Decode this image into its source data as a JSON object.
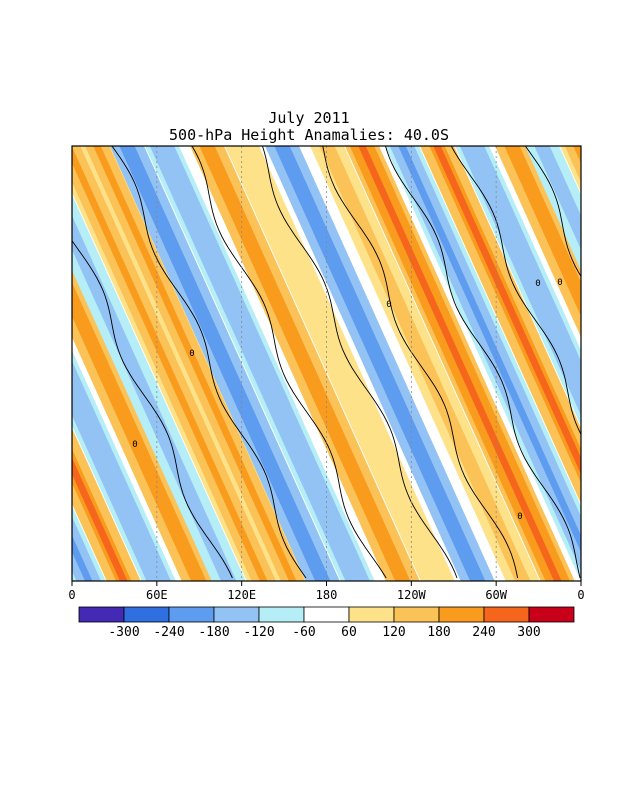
{
  "chart_data": {
    "type": "heatmap",
    "title": "July 2011",
    "subtitle": "500-hPa Height Anamalies: 40.0S",
    "x_ticks": [
      "0",
      "60E",
      "120E",
      "180",
      "120W",
      "60W",
      "0"
    ],
    "contour_label": "0",
    "colorbar": {
      "labels": [
        "-300",
        "-240",
        "-180",
        "-120",
        "-60",
        "60",
        "120",
        "180",
        "240",
        "300"
      ],
      "colors": [
        "#4329b4",
        "#2f6fe0",
        "#5e9cf0",
        "#93c2f5",
        "#b5eef6",
        "#ffffff",
        "#fde28a",
        "#fbc257",
        "#f99b1c",
        "#f5651c",
        "#c8001a"
      ]
    },
    "bands": [
      {
        "x0": 25,
        "v": 150
      },
      {
        "x0": 55,
        "v": -200
      },
      {
        "x0": 90,
        "v": -150
      },
      {
        "x0": 135,
        "v": 200
      },
      {
        "x0": 170,
        "v": 60
      },
      {
        "x0": 210,
        "v": -190
      },
      {
        "x0": 255,
        "v": 120
      },
      {
        "x0": 290,
        "v": 230
      },
      {
        "x0": 330,
        "v": -160
      },
      {
        "x0": 365,
        "v": 210
      },
      {
        "x0": 400,
        "v": -150
      },
      {
        "x0": 440,
        "v": 180
      },
      {
        "x0": 470,
        "v": -120
      },
      {
        "x0": 505,
        "v": 170
      }
    ]
  }
}
